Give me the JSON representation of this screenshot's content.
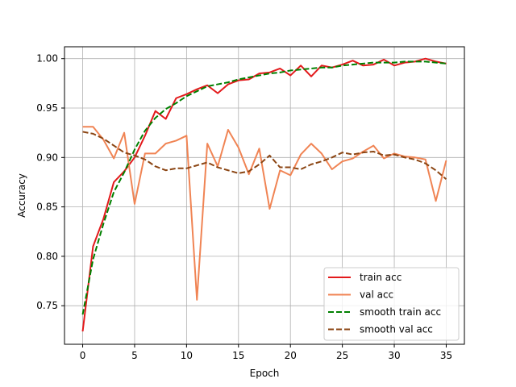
{
  "chart_data": {
    "type": "line",
    "title": "",
    "xlabel": "Epoch",
    "ylabel": "Accuracy",
    "xlim": [
      -1.75,
      36.75
    ],
    "ylim": [
      0.711,
      1.012
    ],
    "xticks": [
      0,
      5,
      10,
      15,
      20,
      25,
      30,
      35
    ],
    "yticks": [
      0.75,
      0.8,
      0.85,
      0.9,
      0.95,
      1.0
    ],
    "xtick_labels": [
      "0",
      "5",
      "10",
      "15",
      "20",
      "25",
      "30",
      "35"
    ],
    "ytick_labels": [
      "0.75",
      "0.80",
      "0.85",
      "0.90",
      "0.95",
      "1.00"
    ],
    "grid": true,
    "legend_position": "lower-right",
    "x": [
      0,
      1,
      2,
      3,
      4,
      5,
      6,
      7,
      8,
      9,
      10,
      11,
      12,
      13,
      14,
      15,
      16,
      17,
      18,
      19,
      20,
      21,
      22,
      23,
      24,
      25,
      26,
      27,
      28,
      29,
      30,
      31,
      32,
      33,
      34,
      35
    ],
    "series": [
      {
        "name": "train acc",
        "color": "#e31a1c",
        "dash": "solid",
        "values": [
          0.724,
          0.81,
          0.838,
          0.875,
          0.886,
          0.9,
          0.922,
          0.947,
          0.939,
          0.96,
          0.964,
          0.969,
          0.973,
          0.965,
          0.974,
          0.978,
          0.979,
          0.985,
          0.986,
          0.99,
          0.983,
          0.993,
          0.982,
          0.993,
          0.991,
          0.994,
          0.998,
          0.993,
          0.994,
          0.999,
          0.993,
          0.996,
          0.997,
          1.0,
          0.997,
          0.995
        ]
      },
      {
        "name": "val acc",
        "color": "#f08454",
        "dash": "solid",
        "values": [
          0.931,
          0.931,
          0.918,
          0.899,
          0.925,
          0.853,
          0.904,
          0.904,
          0.914,
          0.917,
          0.922,
          0.756,
          0.914,
          0.891,
          0.928,
          0.91,
          0.883,
          0.909,
          0.848,
          0.887,
          0.882,
          0.903,
          0.914,
          0.904,
          0.888,
          0.896,
          0.899,
          0.906,
          0.912,
          0.899,
          0.904,
          0.901,
          0.9,
          0.898,
          0.856,
          0.897
        ]
      },
      {
        "name": "smooth train acc",
        "color": "#008000",
        "dash": "dashed",
        "values": [
          0.741,
          0.797,
          0.833,
          0.865,
          0.885,
          0.908,
          0.927,
          0.94,
          0.949,
          0.955,
          0.962,
          0.967,
          0.972,
          0.974,
          0.976,
          0.979,
          0.981,
          0.983,
          0.985,
          0.986,
          0.988,
          0.989,
          0.99,
          0.991,
          0.991,
          0.993,
          0.994,
          0.995,
          0.996,
          0.996,
          0.996,
          0.997,
          0.997,
          0.997,
          0.996,
          0.995
        ]
      },
      {
        "name": "smooth val acc",
        "color": "#8b4513",
        "dash": "dashed",
        "values": [
          0.926,
          0.924,
          0.919,
          0.912,
          0.905,
          0.902,
          0.898,
          0.891,
          0.887,
          0.889,
          0.889,
          0.892,
          0.895,
          0.89,
          0.887,
          0.884,
          0.886,
          0.893,
          0.902,
          0.89,
          0.89,
          0.888,
          0.893,
          0.896,
          0.9,
          0.905,
          0.903,
          0.905,
          0.906,
          0.902,
          0.903,
          0.9,
          0.898,
          0.894,
          0.887,
          0.878
        ]
      }
    ]
  }
}
